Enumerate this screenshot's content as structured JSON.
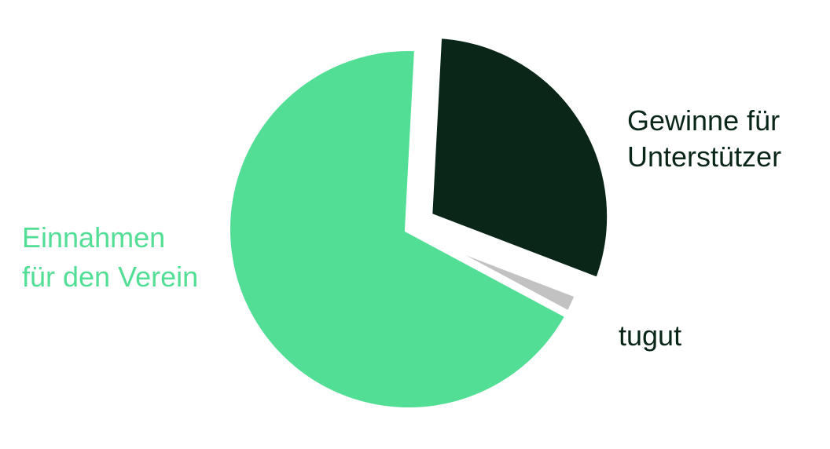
{
  "chart_data": {
    "type": "pie",
    "title": "",
    "slices": [
      {
        "label_lines": [
          "Gewinne für",
          "Unterstützer"
        ],
        "value": 30,
        "color": "#0a2618",
        "label_color": "#0a2618",
        "exploded": true
      },
      {
        "label_lines": [
          "tugut"
        ],
        "value": 2,
        "color": "#c2c2c2",
        "label_color": "#0a2618",
        "exploded": false
      },
      {
        "label_lines": [
          "Einnahmen",
          "für den Verein"
        ],
        "value": 68,
        "color": "#52de95",
        "label_color": "#52de95",
        "exploded": false
      }
    ],
    "start_angle_deg": 3,
    "direction": "clockwise",
    "legend": "none"
  }
}
